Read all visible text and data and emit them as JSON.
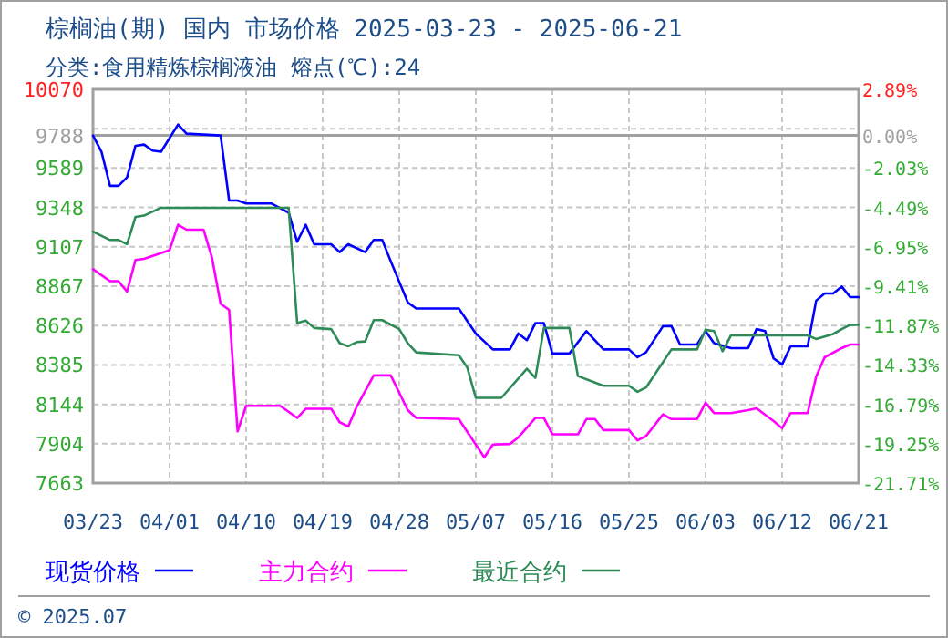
{
  "chart_data": {
    "type": "line",
    "title": "棕榈油(期) 国内 市场价格  2025-03-23 - 2025-06-21",
    "subtitle": "分类:食用精炼棕榈液油 熔点(℃):24",
    "xlim": [
      "2025-03-23",
      "2025-06-21"
    ],
    "xticks": [
      {
        "value": "2025-03-23",
        "label": "03/23"
      },
      {
        "value": "2025-04-01",
        "label": "04/01"
      },
      {
        "value": "2025-04-10",
        "label": "04/10"
      },
      {
        "value": "2025-04-19",
        "label": "04/19"
      },
      {
        "value": "2025-04-28",
        "label": "04/28"
      },
      {
        "value": "2025-05-07",
        "label": "05/07"
      },
      {
        "value": "2025-05-16",
        "label": "05/16"
      },
      {
        "value": "2025-05-25",
        "label": "05/25"
      },
      {
        "value": "2025-06-03",
        "label": "06/03"
      },
      {
        "value": "2025-06-12",
        "label": "06/12"
      },
      {
        "value": "2025-06-21",
        "label": "06/21"
      }
    ],
    "ylim": [
      7663,
      10070
    ],
    "yticks": [
      7663,
      7904,
      8144,
      8385,
      8626,
      8867,
      9107,
      9348,
      9589,
      9788,
      {
        "value": 9829,
        "label": null
      },
      10070
    ],
    "y2lim": [
      -21.71,
      2.89
    ],
    "y2ticks": [
      {
        "value": -21.71,
        "label": "-21.71%"
      },
      {
        "value": -19.25,
        "label": "-19.25%"
      },
      {
        "value": -16.79,
        "label": "-16.79%"
      },
      {
        "value": -14.33,
        "label": "-14.33%"
      },
      {
        "value": -11.87,
        "label": "-11.87%"
      },
      {
        "value": -9.41,
        "label": "-9.41%"
      },
      {
        "value": -6.95,
        "label": "-6.95%"
      },
      {
        "value": -4.49,
        "label": "-4.49%"
      },
      {
        "value": -2.03,
        "label": "-2.03%"
      },
      {
        "value": 0,
        "label": "0.00%"
      },
      {
        "value": 2.89,
        "label": "2.89%"
      }
    ],
    "ref_lines": [
      {
        "axis": "y",
        "value": 9788,
        "color": "#a0a0a0"
      }
    ],
    "grid": true,
    "legend": "bottom",
    "annotations": [
      "© 2025.07"
    ],
    "series": [
      {
        "name": "现货价格",
        "color": "#0000ff",
        "x": [
          "2025-03-23",
          "2025-03-24",
          "2025-03-25",
          "2025-03-26",
          "2025-03-27",
          "2025-03-28",
          "2025-03-29",
          "2025-03-30",
          "2025-03-31",
          "2025-04-02",
          "2025-04-03",
          "2025-04-07",
          "2025-04-08",
          "2025-04-09",
          "2025-04-10",
          "2025-04-13",
          "2025-04-15",
          "2025-04-16",
          "2025-04-17",
          "2025-04-18",
          "2025-04-20",
          "2025-04-21",
          "2025-04-22",
          "2025-04-24",
          "2025-04-25",
          "2025-04-26",
          "2025-04-27",
          "2025-04-29",
          "2025-04-30",
          "2025-05-05",
          "2025-05-07",
          "2025-05-09",
          "2025-05-11",
          "2025-05-12",
          "2025-05-13",
          "2025-05-14",
          "2025-05-15",
          "2025-05-16",
          "2025-05-18",
          "2025-05-20",
          "2025-05-22",
          "2025-05-25",
          "2025-05-26",
          "2025-05-27",
          "2025-05-29",
          "2025-05-30",
          "2025-05-31",
          "2025-06-02",
          "2025-06-03",
          "2025-06-04",
          "2025-06-06",
          "2025-06-08",
          "2025-06-09",
          "2025-06-10",
          "2025-06-11",
          "2025-06-12",
          "2025-06-13",
          "2025-06-15",
          "2025-06-16",
          "2025-06-17",
          "2025-06-18",
          "2025-06-19",
          "2025-06-20",
          "2025-06-21"
        ],
        "values": [
          9788,
          9688,
          9480,
          9480,
          9532,
          9725,
          9732,
          9695,
          9688,
          9855,
          9799,
          9788,
          9390,
          9390,
          9372,
          9372,
          9316,
          9138,
          9242,
          9123,
          9123,
          9075,
          9123,
          9075,
          9149,
          9149,
          9019,
          8767,
          8730,
          8730,
          8577,
          8480,
          8480,
          8577,
          8536,
          8641,
          8641,
          8455,
          8455,
          8592,
          8480,
          8480,
          8432,
          8462,
          8622,
          8622,
          8510,
          8510,
          8592,
          8518,
          8488,
          8488,
          8604,
          8592,
          8425,
          8388,
          8499,
          8499,
          8778,
          8822,
          8822,
          8864,
          8800,
          8800
        ]
      },
      {
        "name": "主力合约",
        "color": "#ff00ff",
        "x": [
          "2025-03-23",
          "2025-03-25",
          "2025-03-26",
          "2025-03-27",
          "2025-03-28",
          "2025-03-29",
          "2025-04-01",
          "2025-04-02",
          "2025-04-03",
          "2025-04-05",
          "2025-04-06",
          "2025-04-07",
          "2025-04-08",
          "2025-04-09",
          "2025-04-10",
          "2025-04-14",
          "2025-04-16",
          "2025-04-17",
          "2025-04-20",
          "2025-04-21",
          "2025-04-22",
          "2025-04-23",
          "2025-04-25",
          "2025-04-27",
          "2025-04-29",
          "2025-04-30",
          "2025-05-05",
          "2025-05-08",
          "2025-05-09",
          "2025-05-11",
          "2025-05-12",
          "2025-05-14",
          "2025-05-15",
          "2025-05-16",
          "2025-05-19",
          "2025-05-20",
          "2025-05-21",
          "2025-05-22",
          "2025-05-25",
          "2025-05-26",
          "2025-05-27",
          "2025-05-29",
          "2025-05-30",
          "2025-06-02",
          "2025-06-03",
          "2025-06-04",
          "2025-06-06",
          "2025-06-08",
          "2025-06-09",
          "2025-06-11",
          "2025-06-12",
          "2025-06-13",
          "2025-06-15",
          "2025-06-16",
          "2025-06-17",
          "2025-06-19",
          "2025-06-20",
          "2025-06-21"
        ],
        "values": [
          8970,
          8897,
          8897,
          8833,
          9027,
          9034,
          9086,
          9242,
          9212,
          9212,
          9038,
          8759,
          8722,
          7979,
          8135,
          8135,
          8061,
          8117,
          8117,
          8035,
          8009,
          8130,
          8321,
          8321,
          8109,
          8061,
          8054,
          7820,
          7898,
          7902,
          7942,
          8061,
          8061,
          7961,
          7961,
          8054,
          8054,
          7987,
          7987,
          7924,
          7950,
          8083,
          8054,
          8054,
          8154,
          8091,
          8091,
          8109,
          8120,
          8042,
          7998,
          8091,
          8091,
          8313,
          8432,
          8488,
          8510,
          8510
        ]
      },
      {
        "name": "最近合约",
        "color": "#2e8b57",
        "x": [
          "2025-03-23",
          "2025-03-25",
          "2025-03-26",
          "2025-03-27",
          "2025-03-28",
          "2025-03-29",
          "2025-03-31",
          "2025-04-15",
          "2025-04-16",
          "2025-04-17",
          "2025-04-18",
          "2025-04-20",
          "2025-04-21",
          "2025-04-22",
          "2025-04-23",
          "2025-04-24",
          "2025-04-25",
          "2025-04-26",
          "2025-04-28",
          "2025-04-29",
          "2025-04-30",
          "2025-05-05",
          "2025-05-06",
          "2025-05-07",
          "2025-05-10",
          "2025-05-13",
          "2025-05-14",
          "2025-05-15",
          "2025-05-18",
          "2025-05-19",
          "2025-05-22",
          "2025-05-25",
          "2025-05-26",
          "2025-05-27",
          "2025-05-30",
          "2025-06-02",
          "2025-06-03",
          "2025-06-04",
          "2025-06-05",
          "2025-06-06",
          "2025-06-15",
          "2025-06-16",
          "2025-06-18",
          "2025-06-19",
          "2025-06-20",
          "2025-06-21"
        ],
        "values": [
          9200,
          9149,
          9149,
          9123,
          9290,
          9298,
          9346,
          9346,
          8641,
          8656,
          8611,
          8604,
          8518,
          8499,
          8525,
          8529,
          8659,
          8659,
          8604,
          8518,
          8462,
          8444,
          8369,
          8184,
          8184,
          8362,
          8306,
          8611,
          8611,
          8317,
          8258,
          8258,
          8221,
          8247,
          8480,
          8480,
          8600,
          8592,
          8469,
          8566,
          8566,
          8544,
          8574,
          8604,
          8630,
          8630
        ]
      }
    ]
  }
}
